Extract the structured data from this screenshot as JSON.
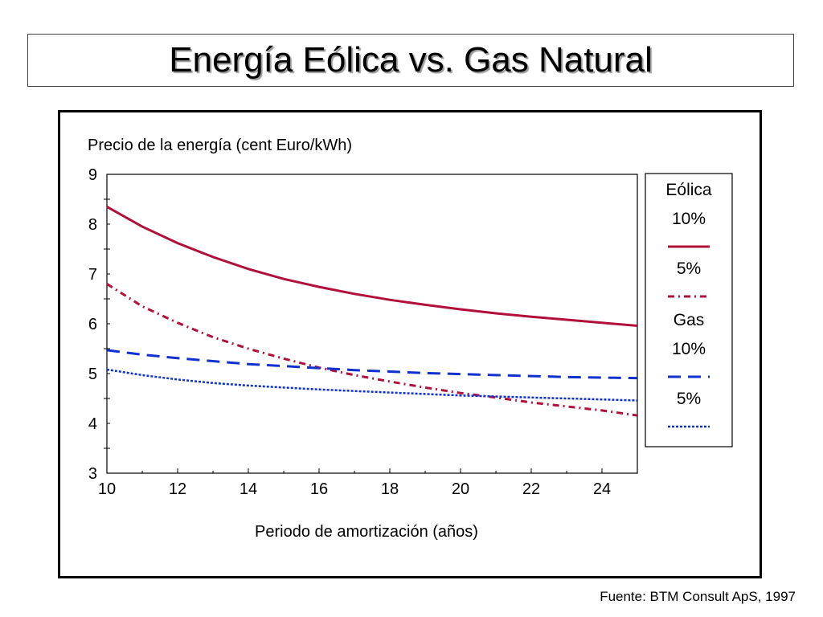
{
  "slide": {
    "title": "Energía Eólica vs. Gas Natural",
    "source": "Fuente: BTM Consult ApS, 1997"
  },
  "legend": {
    "groups": [
      {
        "name": "Eólica",
        "items": [
          {
            "label": "10%",
            "series": "eolica_10"
          },
          {
            "label": "5%",
            "series": "eolica_5"
          }
        ]
      },
      {
        "name": "Gas",
        "items": [
          {
            "label": "10%",
            "series": "gas_10"
          },
          {
            "label": "5%",
            "series": "gas_5"
          }
        ]
      }
    ]
  },
  "chart_data": {
    "type": "line",
    "ylabel": "Precio de la energía (cent Euro/kWh)",
    "xlabel": "Periodo de amortización (años)",
    "xlim": [
      10,
      25
    ],
    "ylim": [
      3,
      9
    ],
    "xticks": [
      10,
      12,
      14,
      16,
      18,
      20,
      22,
      24
    ],
    "yticks": [
      3,
      4,
      5,
      6,
      7,
      8,
      9
    ],
    "grid": false,
    "legend_position": "right",
    "x": [
      10,
      11,
      12,
      13,
      14,
      15,
      16,
      17,
      18,
      19,
      20,
      21,
      22,
      23,
      24,
      25
    ],
    "series": [
      {
        "id": "eolica_10",
        "values": [
          8.35,
          7.95,
          7.62,
          7.34,
          7.1,
          6.9,
          6.74,
          6.6,
          6.48,
          6.38,
          6.29,
          6.21,
          6.14,
          6.08,
          6.02,
          5.96
        ],
        "color": "#b0103a",
        "dash": "solid"
      },
      {
        "id": "eolica_5",
        "values": [
          6.8,
          6.35,
          6.02,
          5.73,
          5.5,
          5.3,
          5.12,
          4.97,
          4.84,
          4.72,
          4.61,
          4.52,
          4.42,
          4.34,
          4.26,
          4.16
        ],
        "color": "#b0103a",
        "dash": "dashdot"
      },
      {
        "id": "gas_10",
        "values": [
          5.47,
          5.38,
          5.31,
          5.25,
          5.19,
          5.15,
          5.11,
          5.07,
          5.04,
          5.01,
          4.99,
          4.97,
          4.95,
          4.93,
          4.92,
          4.91
        ],
        "color": "#1030d0",
        "dash": "dashed"
      },
      {
        "id": "gas_5",
        "values": [
          5.08,
          4.97,
          4.88,
          4.81,
          4.76,
          4.72,
          4.68,
          4.65,
          4.62,
          4.59,
          4.56,
          4.54,
          4.52,
          4.5,
          4.48,
          4.46
        ],
        "color": "#1030d0",
        "dash": "dotted"
      }
    ]
  }
}
